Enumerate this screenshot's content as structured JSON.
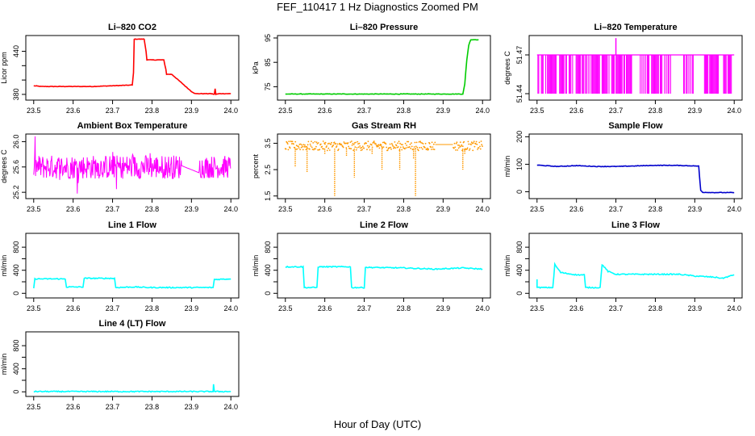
{
  "title": "FEF_110417  1 Hz Diagnostics Zoomed PM",
  "xlabel": "Hour of Day (UTC)",
  "chart_data": [
    {
      "type": "line",
      "title": "Li–820 CO2",
      "ylabel": "Licor ppm",
      "color": "#ff0000",
      "xlim": [
        23.48,
        24.02
      ],
      "xticks": [
        23.5,
        23.6,
        23.7,
        23.8,
        23.9,
        24.0
      ],
      "ylim": [
        372,
        462
      ],
      "yticks": [
        380,
        400,
        420,
        440
      ],
      "ytick_labels": [
        "380",
        "",
        "",
        "440"
      ],
      "series": [
        {
          "x": [
            23.5,
            23.52,
            23.55,
            23.6,
            23.65,
            23.7,
            23.75,
            23.753,
            23.755,
            23.78,
            23.785,
            23.787,
            23.8,
            23.83,
            23.835,
            23.837,
            23.85,
            23.9,
            23.91,
            23.92,
            23.95,
            23.958,
            23.96,
            23.962,
            23.97,
            24.0
          ],
          "y": [
            392,
            391,
            391,
            391,
            391,
            392,
            393,
            410,
            457,
            457,
            440,
            428,
            428,
            428,
            415,
            408,
            408,
            384,
            381,
            381,
            381,
            380,
            388,
            380,
            381,
            381
          ]
        }
      ]
    },
    {
      "type": "line",
      "title": "Li–820 Pressure",
      "ylabel": "kPa",
      "color": "#00cc00",
      "xlim": [
        23.48,
        24.02
      ],
      "xticks": [
        23.5,
        23.6,
        23.7,
        23.8,
        23.9,
        24.0
      ],
      "ylim": [
        69.5,
        96
      ],
      "yticks": [
        75,
        85,
        95
      ],
      "ytick_labels": [
        "75",
        "85",
        "95"
      ],
      "series": [
        {
          "x": [
            23.5,
            23.6,
            23.7,
            23.8,
            23.9,
            23.93,
            23.95,
            23.955,
            23.96,
            23.965,
            23.97,
            23.99
          ],
          "y": [
            72,
            72,
            72,
            72,
            72,
            72,
            72,
            76,
            86,
            92,
            94.3,
            94.3
          ]
        }
      ]
    },
    {
      "type": "line",
      "title": "Li–820 Temperature",
      "ylabel": "degrees C",
      "color": "#ff00ff",
      "xlim": [
        23.48,
        24.02
      ],
      "xticks": [
        23.5,
        23.6,
        23.7,
        23.8,
        23.9,
        24.0
      ],
      "ylim": [
        51.435,
        51.485
      ],
      "yticks": [
        51.44,
        51.47
      ],
      "ytick_labels": [
        "51.44",
        "51.47"
      ],
      "values_note_range": [
        51.44,
        51.47
      ]
    },
    {
      "type": "line",
      "title": "Ambient Box Temperature",
      "ylabel": "degrees C",
      "color": "#ff00ff",
      "xlim": [
        23.48,
        24.02
      ],
      "xticks": [
        23.5,
        23.6,
        23.7,
        23.8,
        23.9,
        24.0
      ],
      "ylim": [
        25.1,
        26.12
      ],
      "yticks": [
        25.2,
        25.6,
        26.0
      ],
      "ytick_labels": [
        "25.2",
        "25.6",
        "26.0"
      ]
    },
    {
      "type": "scatter",
      "title": "Gas Stream RH",
      "ylabel": "percent",
      "color": "#ff9900",
      "xlim": [
        23.48,
        24.02
      ],
      "xticks": [
        23.5,
        23.6,
        23.7,
        23.8,
        23.9,
        24.0
      ],
      "ylim": [
        1.4,
        3.85
      ],
      "yticks": [
        1.5,
        2.5,
        3.5
      ],
      "ytick_labels": [
        "1.5",
        "2.5",
        "3.5"
      ]
    },
    {
      "type": "line",
      "title": "Sample Flow",
      "ylabel": "ml/min",
      "color": "#0000cc",
      "xlim": [
        23.48,
        24.02
      ],
      "xticks": [
        23.5,
        23.6,
        23.7,
        23.8,
        23.9,
        24.0
      ],
      "ylim": [
        -25,
        210
      ],
      "yticks": [
        0,
        100,
        200
      ],
      "ytick_labels": [
        "0",
        "100",
        "200"
      ],
      "series": [
        {
          "x": [
            23.5,
            23.55,
            23.6,
            23.65,
            23.7,
            23.75,
            23.8,
            23.85,
            23.9,
            23.91,
            23.915,
            23.92,
            23.95,
            24.0
          ],
          "y": [
            97,
            92,
            95,
            92,
            92,
            94,
            96,
            96,
            94,
            93,
            5,
            -2,
            -3,
            -3
          ]
        }
      ]
    },
    {
      "type": "line",
      "title": "Line 1 Flow",
      "ylabel": "ml/min",
      "color": "#00ffff",
      "xlim": [
        23.48,
        24.02
      ],
      "xticks": [
        23.5,
        23.6,
        23.7,
        23.8,
        23.9,
        24.0
      ],
      "ylim": [
        -80,
        1040
      ],
      "yticks": [
        0,
        200,
        400,
        600,
        800
      ],
      "ytick_labels": [
        "0",
        "",
        "400",
        "",
        "800"
      ],
      "series": [
        {
          "x": [
            23.5,
            23.503,
            23.58,
            23.583,
            23.625,
            23.628,
            23.705,
            23.708,
            23.75,
            23.8,
            23.9,
            23.955,
            23.958,
            24.0
          ],
          "y": [
            80,
            250,
            250,
            110,
            110,
            260,
            260,
            100,
            110,
            100,
            100,
            100,
            240,
            250
          ]
        }
      ]
    },
    {
      "type": "line",
      "title": "Line 2 Flow",
      "ylabel": "ml/min",
      "color": "#00ffff",
      "xlim": [
        23.48,
        24.02
      ],
      "xticks": [
        23.5,
        23.6,
        23.7,
        23.8,
        23.9,
        24.0
      ],
      "ylim": [
        -80,
        1040
      ],
      "yticks": [
        0,
        200,
        400,
        600,
        800
      ],
      "ytick_labels": [
        "0",
        "",
        "400",
        "",
        "800"
      ],
      "series": [
        {
          "x": [
            23.5,
            23.545,
            23.548,
            23.58,
            23.583,
            23.665,
            23.668,
            23.7,
            23.703,
            23.8,
            23.88,
            23.95,
            24.0
          ],
          "y": [
            460,
            460,
            100,
            100,
            460,
            460,
            100,
            100,
            450,
            440,
            420,
            440,
            420
          ]
        }
      ]
    },
    {
      "type": "line",
      "title": "Line 3 Flow",
      "ylabel": "ml/min",
      "color": "#00ffff",
      "xlim": [
        23.48,
        24.02
      ],
      "xticks": [
        23.5,
        23.6,
        23.7,
        23.8,
        23.9,
        24.0
      ],
      "ylim": [
        -80,
        1040
      ],
      "yticks": [
        0,
        200,
        400,
        600,
        800
      ],
      "ytick_labels": [
        "0",
        "",
        "400",
        "",
        "800"
      ],
      "series": [
        {
          "x": [
            23.5,
            23.5,
            23.503,
            23.54,
            23.545,
            23.56,
            23.6,
            23.62,
            23.623,
            23.66,
            23.665,
            23.68,
            23.7,
            23.8,
            23.86,
            23.9,
            23.95,
            23.97,
            24.0
          ],
          "y": [
            250,
            100,
            100,
            100,
            500,
            360,
            320,
            320,
            100,
            100,
            500,
            380,
            330,
            330,
            330,
            300,
            280,
            260,
            320
          ]
        }
      ]
    },
    {
      "type": "line",
      "title": "Line 4 (LT) Flow",
      "ylabel": "ml/min",
      "color": "#00ffff",
      "xlim": [
        23.48,
        24.02
      ],
      "xticks": [
        23.5,
        23.6,
        23.7,
        23.8,
        23.9,
        24.0
      ],
      "ylim": [
        -80,
        1040
      ],
      "yticks": [
        0,
        200,
        400,
        600,
        800
      ],
      "ytick_labels": [
        "0",
        "",
        "400",
        "",
        "800"
      ],
      "series": [
        {
          "x": [
            23.5,
            23.6,
            23.7,
            23.8,
            23.9,
            23.955,
            23.956,
            23.958,
            24.0
          ],
          "y": [
            5,
            5,
            5,
            5,
            5,
            5,
            130,
            5,
            5
          ]
        }
      ]
    }
  ]
}
